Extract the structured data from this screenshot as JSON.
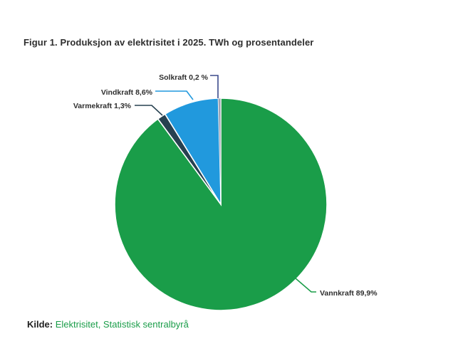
{
  "title": "Figur 1. Produksjon av elektrisitet i 2025. TWh og prosentandeler",
  "source": {
    "prefix": "Kilde:",
    "text": "Elektrisitet, Statistisk sentralbyrå",
    "color": "#1A9D49"
  },
  "chart_data": {
    "type": "pie",
    "title": "Figur 1. Produksjon av elektrisitet i 2025. TWh og prosentandeler",
    "unit": "percent",
    "start_angle_deg": 0,
    "direction": "clockwise",
    "legend": "none",
    "labels_outside": true,
    "slices": [
      {
        "label": "Vannkraft",
        "value": 89.9,
        "display": "Vannkraft 89,9%",
        "color": "#1A9D49"
      },
      {
        "label": "Varmekraft",
        "value": 1.3,
        "display": "Varmekraft 1,3%",
        "color": "#274150"
      },
      {
        "label": "Vindkraft",
        "value": 8.6,
        "display": "Vindkraft 8,6%",
        "color": "#2199DD"
      },
      {
        "label": "Solkraft",
        "value": 0.2,
        "display": "Solkraft 0,2 %",
        "color": "#9EA3B3",
        "leader_color": "#3B4A8C"
      }
    ]
  }
}
